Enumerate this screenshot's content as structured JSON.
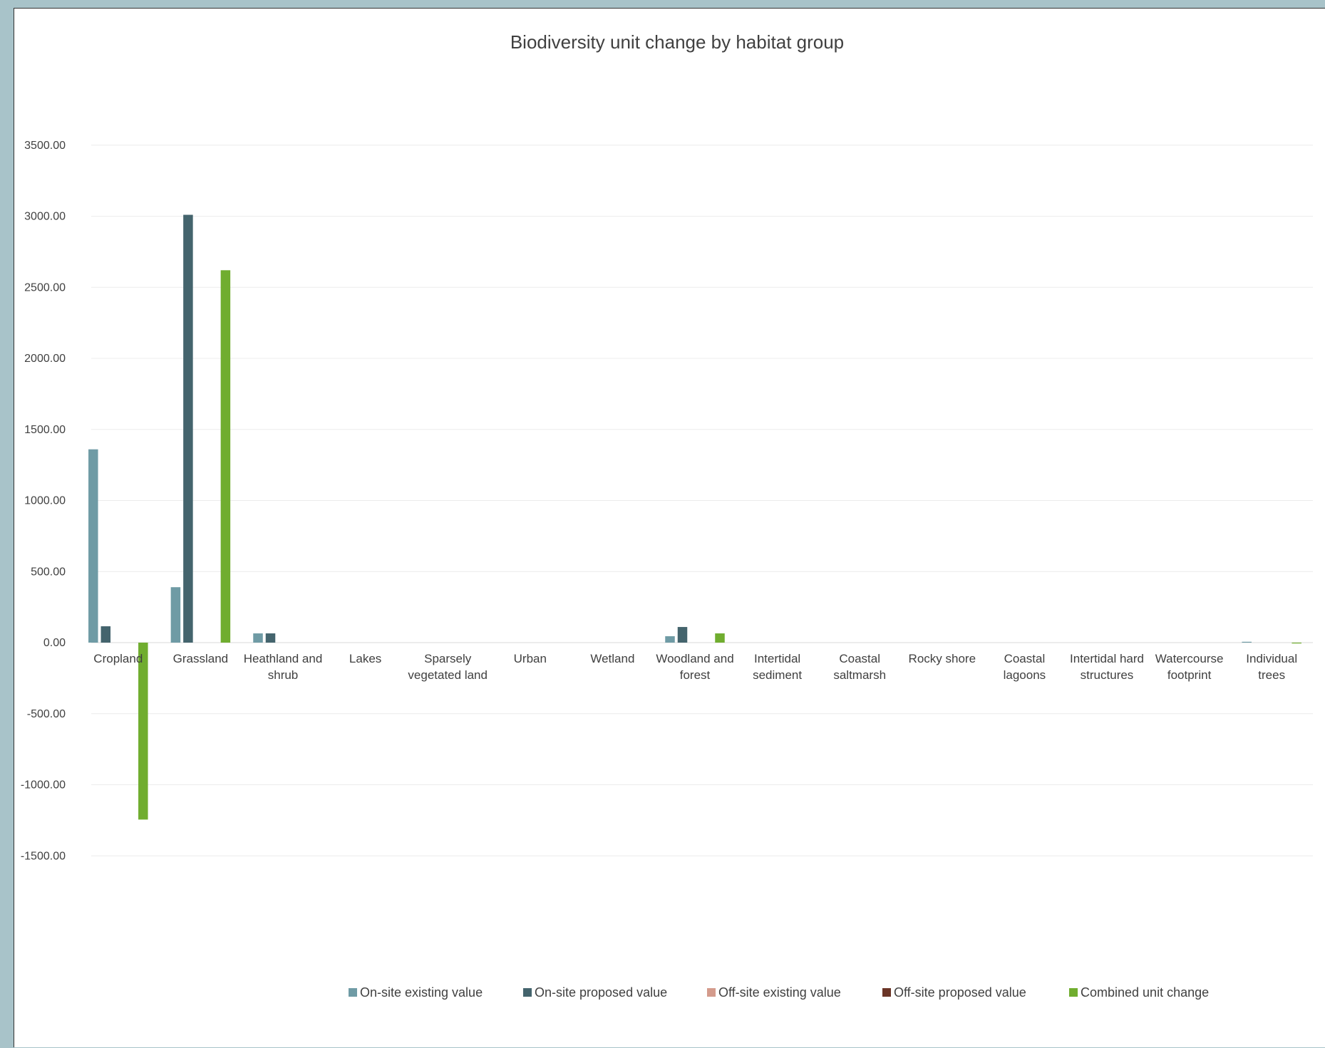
{
  "chart_data": {
    "type": "bar",
    "title": "Biodiversity unit change by habitat group",
    "categories": [
      [
        "Cropland"
      ],
      [
        "Grassland"
      ],
      [
        "Heathland and",
        "shrub"
      ],
      [
        "Lakes"
      ],
      [
        "Sparsely",
        "vegetated land"
      ],
      [
        "Urban"
      ],
      [
        "Wetland"
      ],
      [
        "Woodland and",
        "forest"
      ],
      [
        "Intertidal",
        "sediment"
      ],
      [
        "Coastal",
        "saltmarsh"
      ],
      [
        "Rocky shore"
      ],
      [
        "Coastal",
        "lagoons"
      ],
      [
        "Intertidal hard",
        "structures"
      ],
      [
        "Watercourse",
        "footprint"
      ],
      [
        "Individual",
        "trees"
      ]
    ],
    "series": [
      {
        "name": "On-site existing value",
        "color": "#6f9ba5",
        "values": [
          1360,
          390,
          65,
          0,
          0,
          0,
          0,
          45,
          0,
          0,
          0,
          0,
          0,
          0,
          6
        ]
      },
      {
        "name": "On-site proposed value",
        "color": "#44646d",
        "values": [
          115,
          3010,
          65,
          0,
          0,
          0,
          0,
          110,
          0,
          0,
          0,
          0,
          0,
          0,
          0
        ]
      },
      {
        "name": "Off-site existing value",
        "color": "#d49b8c",
        "values": [
          0,
          0,
          0,
          0,
          0,
          0,
          0,
          0,
          0,
          0,
          0,
          0,
          0,
          0,
          0
        ]
      },
      {
        "name": "Off-site proposed value",
        "color": "#6b3527",
        "values": [
          0,
          0,
          0,
          0,
          0,
          0,
          0,
          0,
          0,
          0,
          0,
          0,
          0,
          0,
          0
        ]
      },
      {
        "name": "Combined unit change",
        "color": "#70ad2f",
        "values": [
          -1245,
          2620,
          0,
          0,
          0,
          0,
          0,
          65,
          0,
          0,
          0,
          0,
          0,
          0,
          -6
        ]
      }
    ],
    "ylim": [
      -2000,
      4000
    ],
    "yticks": [
      "3500.00",
      "3000.00",
      "2500.00",
      "2000.00",
      "1500.00",
      "1000.00",
      "500.00",
      "0.00",
      "-500.00",
      "-1000.00",
      "-1500.00"
    ],
    "ytick_values": [
      3500,
      3000,
      2500,
      2000,
      1500,
      1000,
      500,
      0,
      -500,
      -1000,
      -1500
    ],
    "grid": true,
    "legend_position": "bottom"
  }
}
